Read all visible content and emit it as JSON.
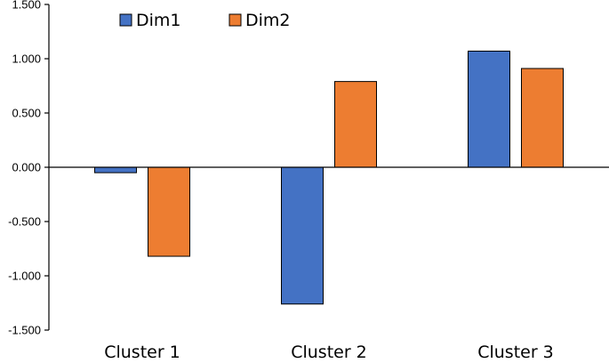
{
  "chart_data": {
    "type": "bar",
    "title": "",
    "xlabel": "",
    "ylabel": "",
    "categories": [
      "Cluster 1",
      "Cluster 2",
      "Cluster 3"
    ],
    "series": [
      {
        "name": "Dim1",
        "color": "#4472C4",
        "values": [
          -0.05,
          -1.26,
          1.07
        ]
      },
      {
        "name": "Dim2",
        "color": "#ED7D31",
        "values": [
          -0.82,
          0.79,
          0.91
        ]
      }
    ],
    "ylim": [
      -1.5,
      1.5
    ],
    "yticks": [
      1.5,
      1.0,
      0.5,
      0.0,
      -0.5,
      -1.0,
      -1.5
    ],
    "ytick_labels": [
      "1.500",
      "1.000",
      "0.500",
      "0.000",
      "-0.500",
      "-1.000",
      "-1.500"
    ],
    "grid": false,
    "legend_position": "top-left"
  }
}
